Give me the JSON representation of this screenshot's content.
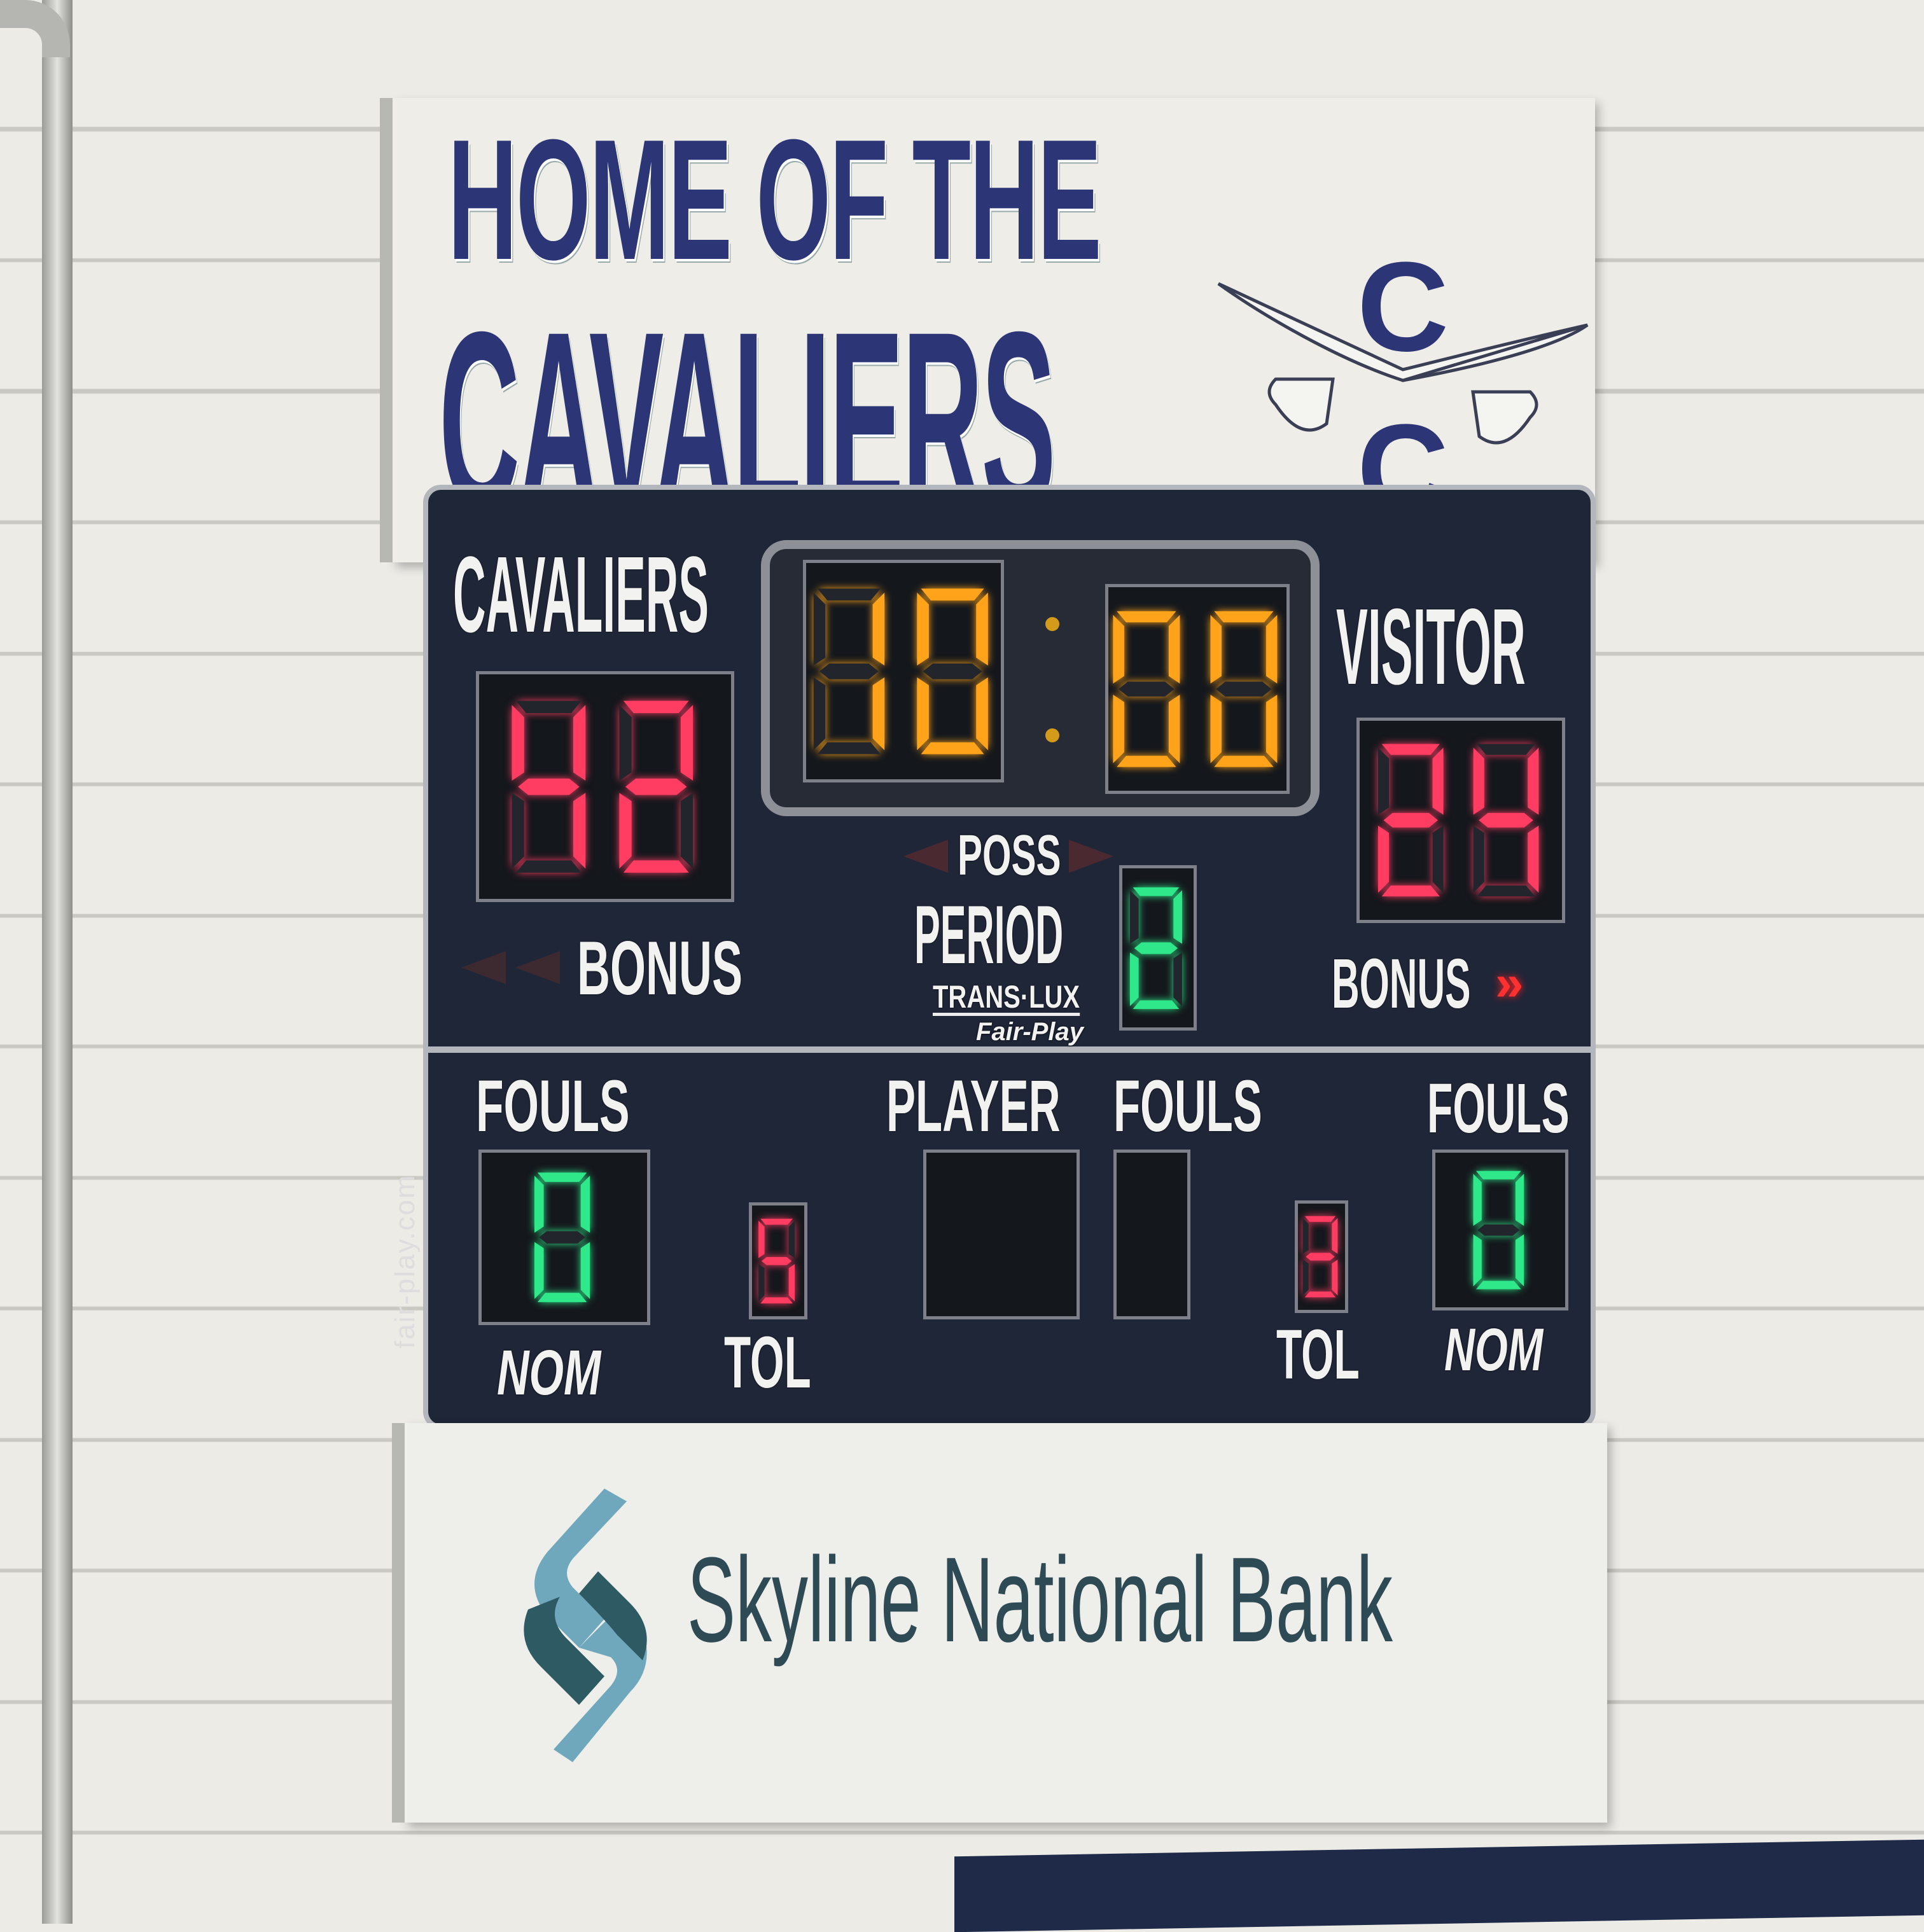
{
  "header": {
    "line1": "HOME OF THE",
    "line2": "CAVALIERS",
    "logo_letters": [
      "C",
      "C"
    ]
  },
  "scoreboard": {
    "home": {
      "name": "CAVALIERS",
      "score": "42",
      "bonus_label": "BONUS",
      "bonus_lit": false,
      "fouls_label": "FOULS",
      "fouls": "0",
      "nom_label": "NOM",
      "tol_label": "TOL",
      "timeouts_left": "5"
    },
    "visitor": {
      "name": "VISITOR",
      "score": "24",
      "bonus_label": "BONUS",
      "bonus_lit": true,
      "fouls_label": "FOULS",
      "fouls": "0",
      "nom_label": "NOM",
      "tol_label": "TOL",
      "timeouts_left": "3"
    },
    "clock": {
      "minutes": "10",
      "seconds": "00"
    },
    "poss_label": "POSS",
    "period_label": "PERIOD",
    "period": "2",
    "player_label": "PLAYER",
    "player_fouls_label": "FOULS",
    "brand": "TRANS·LUX",
    "brand_sub": "Fair-Play",
    "website": "fair-play.com"
  },
  "sponsor": {
    "name": "Skyline National Bank"
  },
  "colors": {
    "navy": "#2c3575",
    "score_red": "#ff3c62",
    "clock_amber": "#ffa41a",
    "green": "#2ee88a",
    "bank_teal": "#2e4a55",
    "bank_light": "#6fa7bd"
  }
}
